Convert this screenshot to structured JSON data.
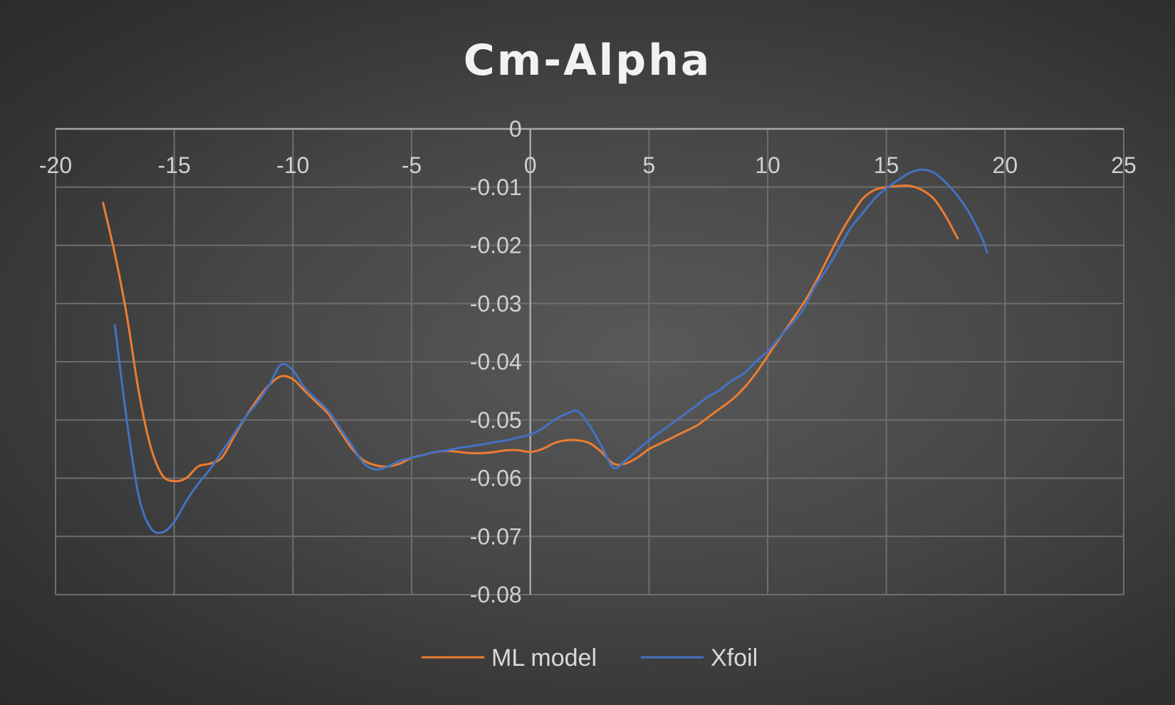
{
  "chart_data": {
    "type": "line",
    "title": "Cm-Alpha",
    "xlabel": "",
    "ylabel": "",
    "xlim": [
      -20,
      25
    ],
    "ylim": [
      -0.08,
      0
    ],
    "x_ticks": [
      "-20",
      "-15",
      "-10",
      "-5",
      "0",
      "5",
      "10",
      "15",
      "20",
      "25"
    ],
    "y_ticks": [
      "0",
      "-0.01",
      "-0.02",
      "-0.03",
      "-0.04",
      "-0.05",
      "-0.06",
      "-0.07",
      "-0.08"
    ],
    "grid": true,
    "legend": "bottom",
    "series": [
      {
        "name": "ML model",
        "color": "#ed7d31",
        "points": [
          [
            -18,
            -0.0127
          ],
          [
            -17.5,
            -0.0215
          ],
          [
            -17,
            -0.032
          ],
          [
            -16.5,
            -0.045
          ],
          [
            -16,
            -0.0545
          ],
          [
            -15.5,
            -0.0595
          ],
          [
            -15,
            -0.0605
          ],
          [
            -14.5,
            -0.06
          ],
          [
            -14,
            -0.058
          ],
          [
            -13.5,
            -0.0575
          ],
          [
            -13,
            -0.0565
          ],
          [
            -12.5,
            -0.053
          ],
          [
            -12,
            -0.0495
          ],
          [
            -11.5,
            -0.0465
          ],
          [
            -11,
            -0.044
          ],
          [
            -10.5,
            -0.0425
          ],
          [
            -10,
            -0.043
          ],
          [
            -9.5,
            -0.045
          ],
          [
            -9,
            -0.047
          ],
          [
            -8.5,
            -0.049
          ],
          [
            -8,
            -0.052
          ],
          [
            -7.5,
            -0.055
          ],
          [
            -7,
            -0.057
          ],
          [
            -6.5,
            -0.0578
          ],
          [
            -6,
            -0.058
          ],
          [
            -5.5,
            -0.0575
          ],
          [
            -5,
            -0.0565
          ],
          [
            -4.5,
            -0.056
          ],
          [
            -4,
            -0.0555
          ],
          [
            -3.5,
            -0.0553
          ],
          [
            -3,
            -0.0555
          ],
          [
            -2.5,
            -0.0557
          ],
          [
            -2,
            -0.0557
          ],
          [
            -1.5,
            -0.0555
          ],
          [
            -1,
            -0.0552
          ],
          [
            -0.5,
            -0.0552
          ],
          [
            0,
            -0.0555
          ],
          [
            0.5,
            -0.055
          ],
          [
            1,
            -0.054
          ],
          [
            1.5,
            -0.0535
          ],
          [
            2,
            -0.0535
          ],
          [
            2.5,
            -0.054
          ],
          [
            3,
            -0.0555
          ],
          [
            3.5,
            -0.0575
          ],
          [
            4,
            -0.0575
          ],
          [
            4.5,
            -0.0565
          ],
          [
            5,
            -0.055
          ],
          [
            5.5,
            -0.054
          ],
          [
            6,
            -0.053
          ],
          [
            6.5,
            -0.052
          ],
          [
            7,
            -0.051
          ],
          [
            7.5,
            -0.0495
          ],
          [
            8,
            -0.048
          ],
          [
            8.5,
            -0.0465
          ],
          [
            9,
            -0.0445
          ],
          [
            9.5,
            -0.042
          ],
          [
            10,
            -0.039
          ],
          [
            10.5,
            -0.036
          ],
          [
            11,
            -0.033
          ],
          [
            11.5,
            -0.03
          ],
          [
            12,
            -0.0265
          ],
          [
            12.5,
            -0.0225
          ],
          [
            13,
            -0.0185
          ],
          [
            13.5,
            -0.015
          ],
          [
            14,
            -0.012
          ],
          [
            14.5,
            -0.0105
          ],
          [
            15,
            -0.01
          ],
          [
            15.5,
            -0.0098
          ],
          [
            16,
            -0.0098
          ],
          [
            16.5,
            -0.0105
          ],
          [
            17,
            -0.012
          ],
          [
            17.5,
            -0.015
          ],
          [
            18,
            -0.0188
          ]
        ]
      },
      {
        "name": "Xfoil",
        "color": "#4472c4",
        "points": [
          [
            -17.5,
            -0.0337
          ],
          [
            -17,
            -0.05
          ],
          [
            -16.5,
            -0.063
          ],
          [
            -16,
            -0.0685
          ],
          [
            -15.5,
            -0.0693
          ],
          [
            -15,
            -0.0675
          ],
          [
            -14.5,
            -0.064
          ],
          [
            -14,
            -0.061
          ],
          [
            -13.5,
            -0.0585
          ],
          [
            -13,
            -0.0555
          ],
          [
            -12.5,
            -0.0525
          ],
          [
            -12,
            -0.0495
          ],
          [
            -11.5,
            -0.047
          ],
          [
            -11,
            -0.044
          ],
          [
            -10.5,
            -0.0405
          ],
          [
            -10,
            -0.0415
          ],
          [
            -9.5,
            -0.0445
          ],
          [
            -9,
            -0.0465
          ],
          [
            -8.5,
            -0.0485
          ],
          [
            -8,
            -0.0515
          ],
          [
            -7.5,
            -0.0545
          ],
          [
            -7,
            -0.0575
          ],
          [
            -6.5,
            -0.0585
          ],
          [
            -6,
            -0.058
          ],
          [
            -5.5,
            -0.057
          ],
          [
            -5,
            -0.0565
          ],
          [
            -4.5,
            -0.056
          ],
          [
            -4,
            -0.0555
          ],
          [
            -3.5,
            -0.0552
          ],
          [
            -3,
            -0.0548
          ],
          [
            -2.5,
            -0.0545
          ],
          [
            -2,
            -0.0542
          ],
          [
            -1.5,
            -0.0538
          ],
          [
            -1,
            -0.0535
          ],
          [
            -0.5,
            -0.053
          ],
          [
            0,
            -0.0525
          ],
          [
            0.5,
            -0.0515
          ],
          [
            1,
            -0.05
          ],
          [
            1.5,
            -0.049
          ],
          [
            2,
            -0.0485
          ],
          [
            2.5,
            -0.051
          ],
          [
            3,
            -0.0545
          ],
          [
            3.5,
            -0.0582
          ],
          [
            4,
            -0.057
          ],
          [
            4.5,
            -0.0552
          ],
          [
            5,
            -0.0535
          ],
          [
            5.5,
            -0.052
          ],
          [
            6,
            -0.0505
          ],
          [
            6.5,
            -0.049
          ],
          [
            7,
            -0.0475
          ],
          [
            7.5,
            -0.046
          ],
          [
            8,
            -0.0448
          ],
          [
            8.5,
            -0.0432
          ],
          [
            9,
            -0.042
          ],
          [
            9.5,
            -0.04
          ],
          [
            10,
            -0.0382
          ],
          [
            10.5,
            -0.0358
          ],
          [
            11,
            -0.0335
          ],
          [
            11.5,
            -0.031
          ],
          [
            12,
            -0.027
          ],
          [
            12.5,
            -0.024
          ],
          [
            13,
            -0.0205
          ],
          [
            13.5,
            -0.017
          ],
          [
            14,
            -0.0145
          ],
          [
            14.5,
            -0.012
          ],
          [
            15,
            -0.0102
          ],
          [
            15.5,
            -0.0088
          ],
          [
            16,
            -0.0075
          ],
          [
            16.5,
            -0.007
          ],
          [
            17,
            -0.0075
          ],
          [
            17.5,
            -0.0092
          ],
          [
            18,
            -0.0115
          ],
          [
            18.5,
            -0.0145
          ],
          [
            19,
            -0.0185
          ],
          [
            19.25,
            -0.0212
          ]
        ]
      }
    ]
  }
}
